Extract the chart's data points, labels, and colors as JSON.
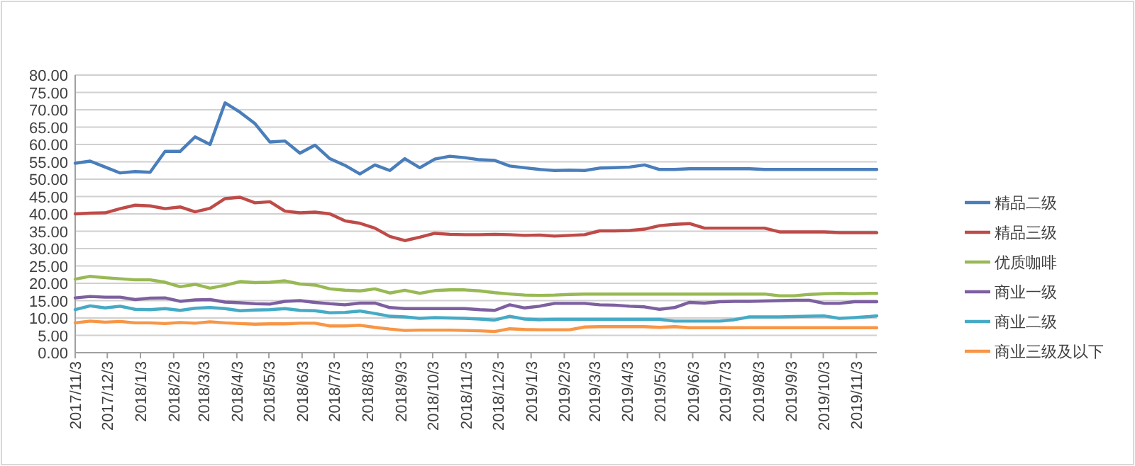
{
  "chart_data": {
    "type": "line",
    "x": [
      "2017-11-03",
      "2017-11-17",
      "2017-12-01",
      "2017-12-15",
      "2017-12-29",
      "2018-01-12",
      "2018-01-26",
      "2018-02-09",
      "2018-02-23",
      "2018-03-09",
      "2018-03-23",
      "2018-04-06",
      "2018-04-20",
      "2018-05-04",
      "2018-05-18",
      "2018-06-01",
      "2018-06-15",
      "2018-06-29",
      "2018-07-13",
      "2018-07-27",
      "2018-08-10",
      "2018-08-24",
      "2018-09-07",
      "2018-09-21",
      "2018-10-05",
      "2018-10-19",
      "2018-11-02",
      "2018-11-16",
      "2018-11-30",
      "2018-12-14",
      "2018-12-28",
      "2019-01-11",
      "2019-01-25",
      "2019-02-08",
      "2019-02-22",
      "2019-03-08",
      "2019-03-22",
      "2019-04-05",
      "2019-04-19",
      "2019-05-03",
      "2019-05-17",
      "2019-05-31",
      "2019-06-14",
      "2019-06-28",
      "2019-07-12",
      "2019-07-26",
      "2019-08-09",
      "2019-08-23",
      "2019-09-06",
      "2019-09-20",
      "2019-10-04",
      "2019-10-18",
      "2019-11-01",
      "2019-11-15",
      "2019-11-22"
    ],
    "series": [
      {
        "name": "精品二级",
        "color": "#4a7ebb",
        "values": [
          54.6,
          55.2,
          53.5,
          51.8,
          52.2,
          52,
          58,
          58,
          62.2,
          60,
          72,
          69.3,
          66,
          60.7,
          61,
          57.5,
          59.8,
          55.9,
          54,
          51.5,
          54.1,
          52.5,
          55.9,
          53.3,
          55.8,
          56.6,
          56.2,
          55.6,
          55.4,
          53.8,
          53.3,
          52.8,
          52.5,
          52.6,
          52.5,
          53.2,
          53.3,
          53.5,
          54.1,
          52.8,
          52.8,
          53,
          53,
          53,
          53,
          53,
          52.8,
          52.8,
          52.8,
          52.8,
          52.8,
          52.8,
          52.8,
          52.8,
          52.8
        ]
      },
      {
        "name": "精品三级",
        "color": "#be4b48",
        "values": [
          40,
          40.2,
          40.3,
          41.5,
          42.5,
          42.3,
          41.5,
          42,
          40.6,
          41.6,
          44.4,
          44.8,
          43.2,
          43.5,
          40.8,
          40.3,
          40.5,
          40,
          38,
          37.3,
          35.9,
          33.5,
          32.3,
          33.3,
          34.4,
          34.1,
          34,
          34,
          34.1,
          34,
          33.8,
          33.9,
          33.6,
          33.8,
          34,
          35.1,
          35.1,
          35.2,
          35.6,
          36.6,
          37,
          37.2,
          35.9,
          35.9,
          35.9,
          35.9,
          35.9,
          34.8,
          34.8,
          34.8,
          34.8,
          34.6,
          34.6,
          34.6,
          34.6
        ]
      },
      {
        "name": "优质咖啡",
        "color": "#98b954",
        "values": [
          21.2,
          22,
          21.6,
          21.3,
          21,
          21,
          20.3,
          19,
          19.7,
          18.6,
          19.4,
          20.5,
          20.2,
          20.3,
          20.7,
          19.8,
          19.5,
          18.4,
          18,
          17.8,
          18.4,
          17.2,
          18,
          17.1,
          17.9,
          18.1,
          18.1,
          17.8,
          17.3,
          16.9,
          16.6,
          16.5,
          16.6,
          16.8,
          16.9,
          16.9,
          16.9,
          16.9,
          16.9,
          16.9,
          16.9,
          16.9,
          16.9,
          16.9,
          16.9,
          16.9,
          16.9,
          16.4,
          16.4,
          16.8,
          17,
          17.1,
          17,
          17.1,
          17.1
        ]
      },
      {
        "name": "商业一级",
        "color": "#7d60a0",
        "values": [
          15.8,
          16.2,
          16,
          16,
          15.3,
          15.7,
          15.8,
          14.8,
          15.2,
          15.3,
          14.6,
          14.4,
          14.1,
          14,
          14.8,
          15,
          14.5,
          14.1,
          13.8,
          14.3,
          14.3,
          13,
          12.7,
          12.7,
          12.7,
          12.7,
          12.7,
          12.4,
          12.2,
          13.8,
          12.9,
          13.4,
          14.2,
          14.2,
          14.2,
          13.8,
          13.7,
          13.4,
          13.2,
          12.5,
          13,
          14.5,
          14.3,
          14.7,
          14.8,
          14.8,
          14.9,
          15,
          15.1,
          15.1,
          14.2,
          14.2,
          14.7,
          14.7,
          14.7
        ]
      },
      {
        "name": "商业二级",
        "color": "#46aac5",
        "values": [
          12.4,
          13.5,
          12.9,
          13.4,
          12.5,
          12.4,
          12.7,
          12.2,
          12.8,
          13,
          12.7,
          12.1,
          12.3,
          12.4,
          12.7,
          12.2,
          12.1,
          11.5,
          11.6,
          12,
          11.3,
          10.5,
          10.3,
          9.9,
          10.1,
          10,
          9.9,
          9.7,
          9.4,
          10.5,
          9.7,
          9.5,
          9.6,
          9.6,
          9.6,
          9.6,
          9.6,
          9.6,
          9.6,
          9.6,
          9.1,
          9.1,
          9.1,
          9.1,
          9.5,
          10.3,
          10.3,
          10.3,
          10.4,
          10.5,
          10.6,
          9.9,
          10.1,
          10.4,
          10.6
        ]
      },
      {
        "name": "商业三级及以下",
        "color": "#f79646",
        "values": [
          8.6,
          9.1,
          8.8,
          9,
          8.6,
          8.6,
          8.4,
          8.7,
          8.5,
          8.9,
          8.6,
          8.4,
          8.2,
          8.3,
          8.3,
          8.5,
          8.5,
          7.7,
          7.7,
          7.9,
          7.3,
          6.8,
          6.4,
          6.5,
          6.5,
          6.5,
          6.4,
          6.3,
          6.1,
          6.9,
          6.7,
          6.6,
          6.6,
          6.6,
          7.4,
          7.5,
          7.5,
          7.5,
          7.5,
          7.3,
          7.5,
          7.2,
          7.2,
          7.2,
          7.2,
          7.2,
          7.2,
          7.2,
          7.2,
          7.2,
          7.2,
          7.2,
          7.2,
          7.2,
          7.2
        ]
      }
    ],
    "xlim": [
      "2017-11-03",
      "2019-11-22"
    ],
    "xticks": [
      {
        "value": "2017-11-03",
        "label": "2017/11/3"
      },
      {
        "value": "2017-12-03",
        "label": "2017/12/3"
      },
      {
        "value": "2018-01-03",
        "label": "2018/1/3"
      },
      {
        "value": "2018-02-03",
        "label": "2018/2/3"
      },
      {
        "value": "2018-03-03",
        "label": "2018/3/3"
      },
      {
        "value": "2018-04-03",
        "label": "2018/4/3"
      },
      {
        "value": "2018-05-03",
        "label": "2018/5/3"
      },
      {
        "value": "2018-06-03",
        "label": "2018/6/3"
      },
      {
        "value": "2018-07-03",
        "label": "2018/7/3"
      },
      {
        "value": "2018-08-03",
        "label": "2018/8/3"
      },
      {
        "value": "2018-09-03",
        "label": "2018/9/3"
      },
      {
        "value": "2018-10-03",
        "label": "2018/10/3"
      },
      {
        "value": "2018-11-03",
        "label": "2018/11/3"
      },
      {
        "value": "2018-12-03",
        "label": "2018/12/3"
      },
      {
        "value": "2019-01-03",
        "label": "2019/1/3"
      },
      {
        "value": "2019-02-03",
        "label": "2019/2/3"
      },
      {
        "value": "2019-03-03",
        "label": "2019/3/3"
      },
      {
        "value": "2019-04-03",
        "label": "2019/4/3"
      },
      {
        "value": "2019-05-03",
        "label": "2019/5/3"
      },
      {
        "value": "2019-06-03",
        "label": "2019/6/3"
      },
      {
        "value": "2019-07-03",
        "label": "2019/7/3"
      },
      {
        "value": "2019-08-03",
        "label": "2019/8/3"
      },
      {
        "value": "2019-09-03",
        "label": "2019/9/3"
      },
      {
        "value": "2019-10-03",
        "label": "2019/10/3"
      },
      {
        "value": "2019-11-03",
        "label": "2019/11/3"
      }
    ],
    "ylim": [
      0,
      80
    ],
    "yticks": [
      {
        "value": 0,
        "label": "0.00"
      },
      {
        "value": 5,
        "label": "5.00"
      },
      {
        "value": 10,
        "label": "10.00"
      },
      {
        "value": 15,
        "label": "15.00"
      },
      {
        "value": 20,
        "label": "20.00"
      },
      {
        "value": 25,
        "label": "25.00"
      },
      {
        "value": 30,
        "label": "30.00"
      },
      {
        "value": 35,
        "label": "35.00"
      },
      {
        "value": 40,
        "label": "40.00"
      },
      {
        "value": 45,
        "label": "45.00"
      },
      {
        "value": 50,
        "label": "50.00"
      },
      {
        "value": 55,
        "label": "55.00"
      },
      {
        "value": 60,
        "label": "60.00"
      },
      {
        "value": 65,
        "label": "65.00"
      },
      {
        "value": 70,
        "label": "70.00"
      },
      {
        "value": 75,
        "label": "75.00"
      },
      {
        "value": 80,
        "label": "80.00"
      }
    ],
    "grid": "y",
    "legend": "right",
    "marker": "none",
    "line_style": "solid"
  }
}
